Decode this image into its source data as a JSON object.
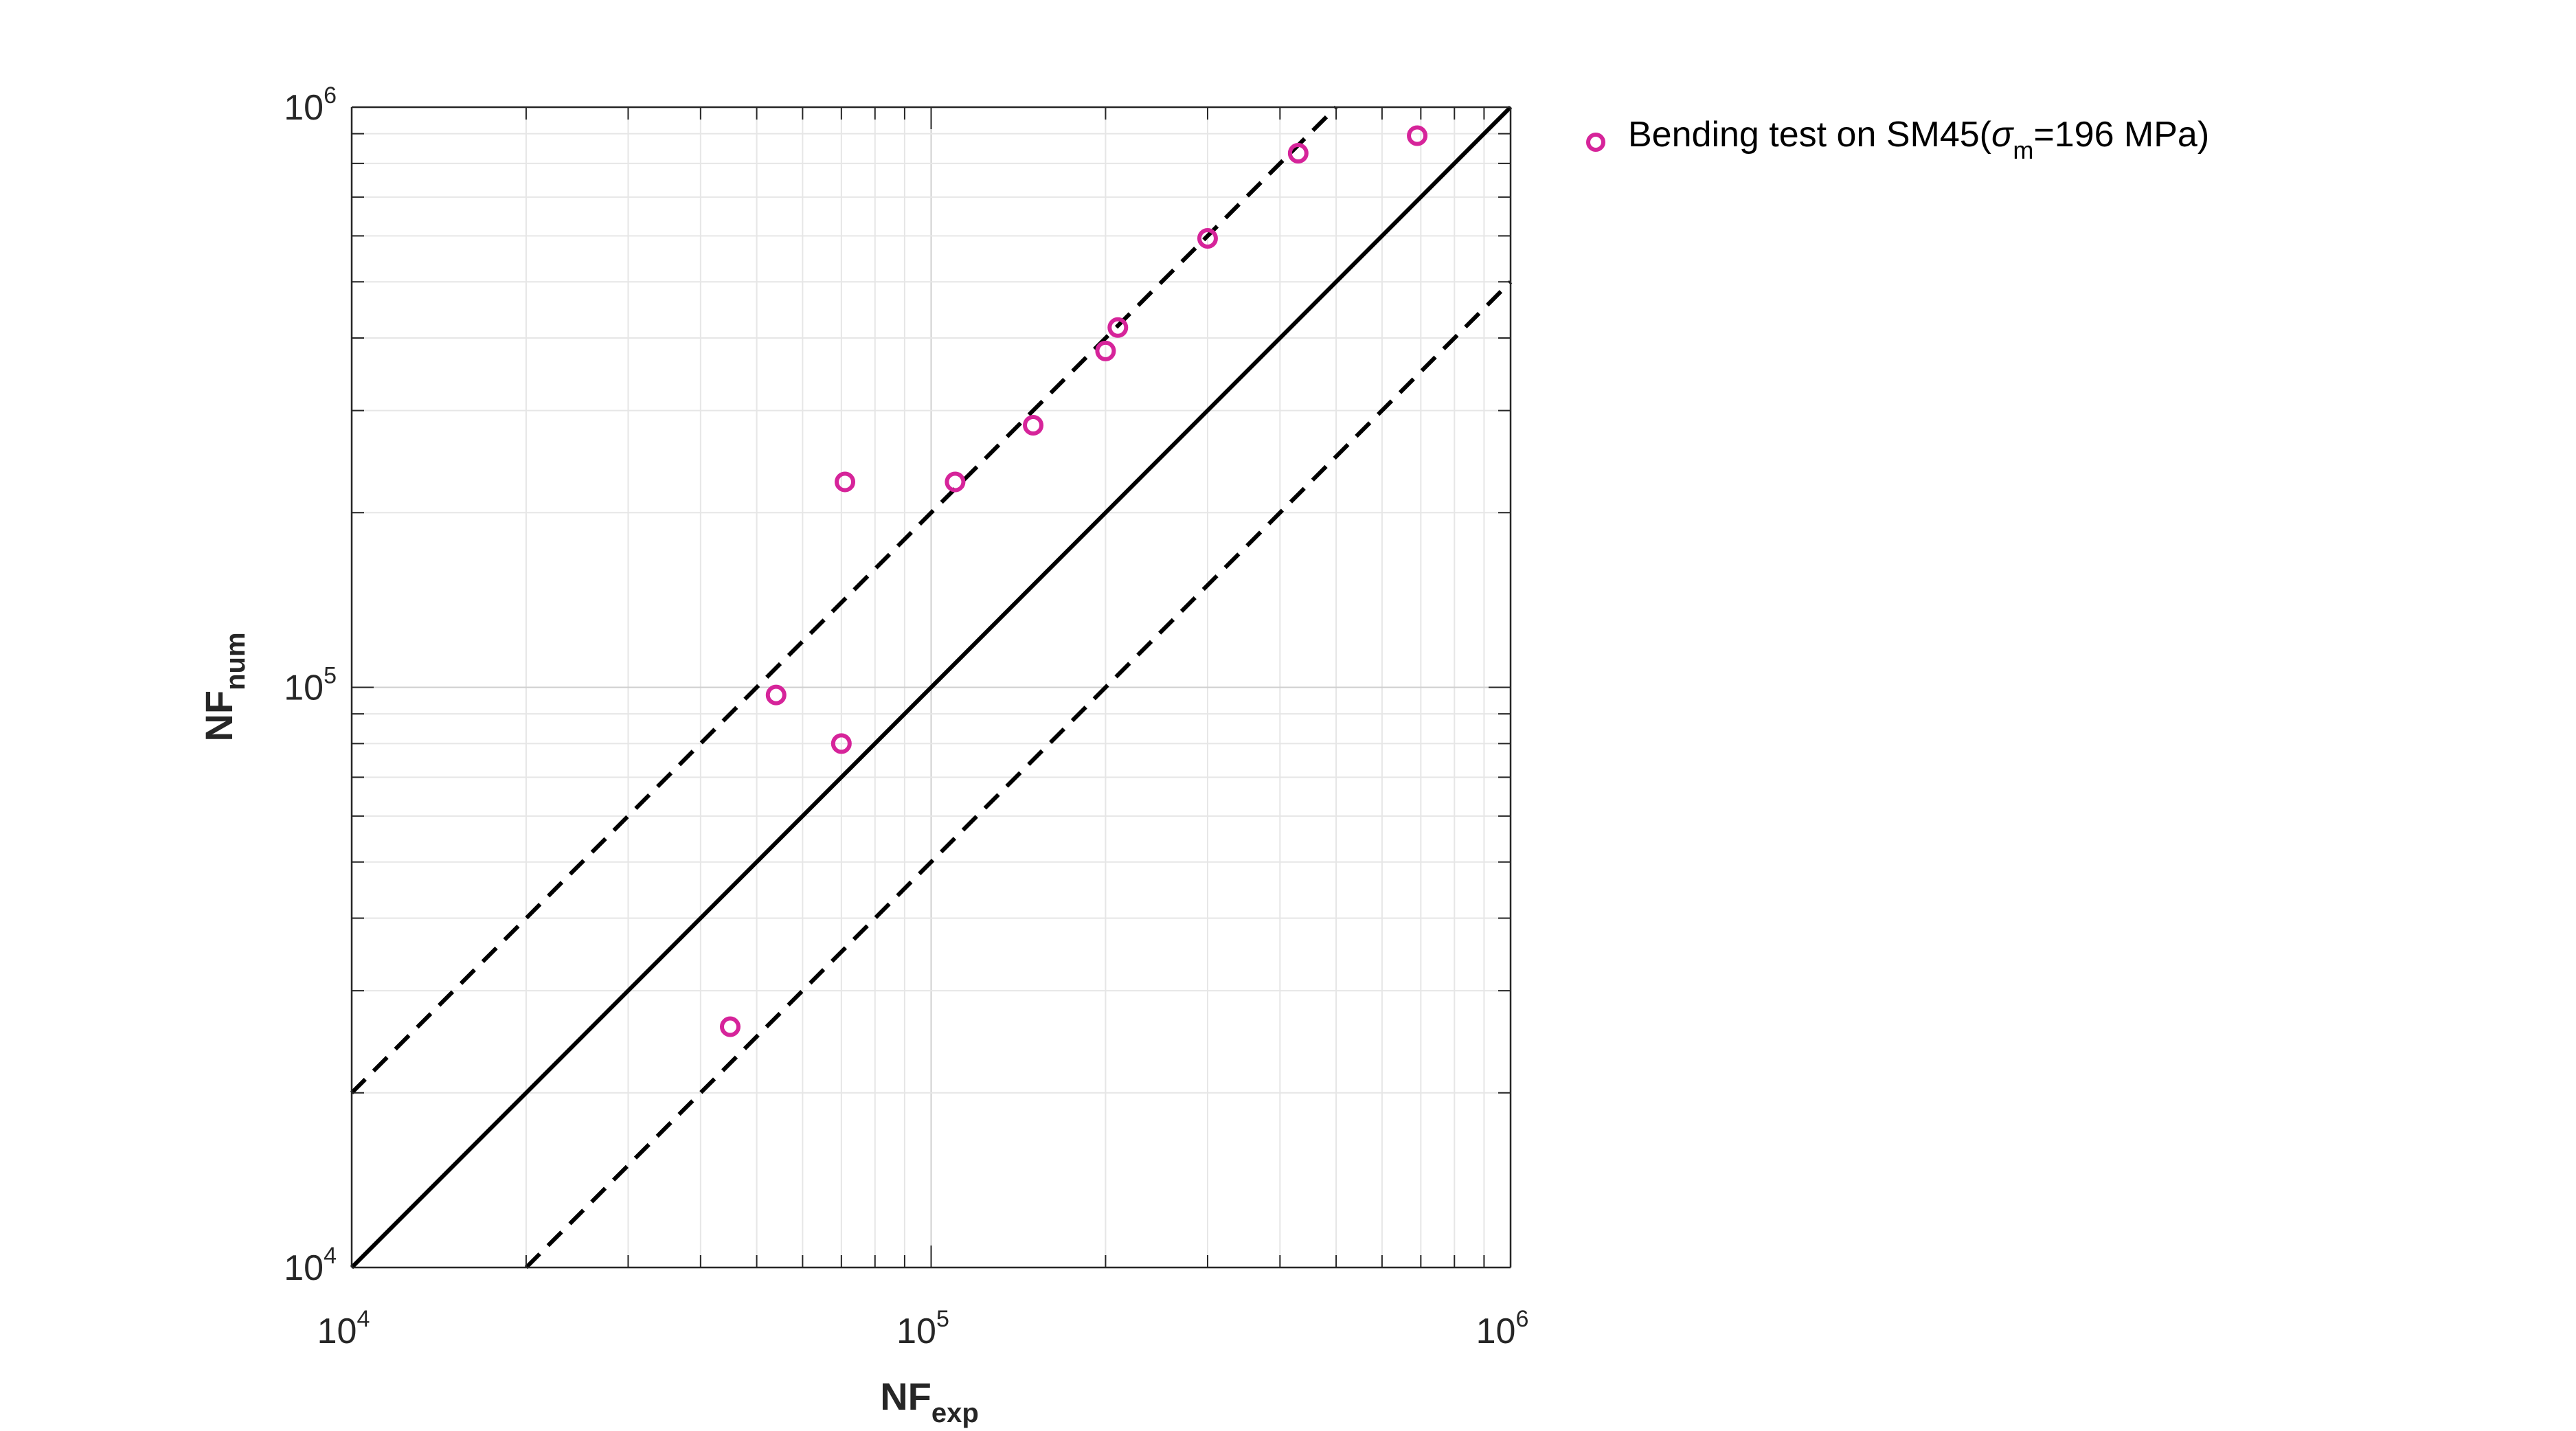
{
  "chart_data": {
    "type": "scatter",
    "xscale": "log",
    "yscale": "log",
    "xlim": [
      10000,
      1000000
    ],
    "ylim": [
      10000,
      1000000
    ],
    "grid": true,
    "xlabel": {
      "main": "NF",
      "sub": "exp"
    },
    "ylabel": {
      "main": "NF",
      "sub": "num"
    },
    "xticks": [
      {
        "base": "10",
        "exp": "4",
        "value": 10000
      },
      {
        "base": "10",
        "exp": "5",
        "value": 100000
      },
      {
        "base": "10",
        "exp": "6",
        "value": 1000000
      }
    ],
    "yticks": [
      {
        "base": "10",
        "exp": "4",
        "value": 10000
      },
      {
        "base": "10",
        "exp": "5",
        "value": 100000
      },
      {
        "base": "10",
        "exp": "6",
        "value": 1000000
      }
    ],
    "legend": {
      "placement": "outside-top-right",
      "text_before": "Bending test on SM45(",
      "symbol": "σ",
      "sub": "m",
      "text_after": "=196 MPa)"
    },
    "series": [
      {
        "color": "#d6249a",
        "marker": "circle-open",
        "points": [
          {
            "x": 45000,
            "y": 26000
          },
          {
            "x": 54000,
            "y": 97000
          },
          {
            "x": 70000,
            "y": 80000
          },
          {
            "x": 71000,
            "y": 226000
          },
          {
            "x": 110000,
            "y": 226000
          },
          {
            "x": 150000,
            "y": 283000
          },
          {
            "x": 200000,
            "y": 380000
          },
          {
            "x": 210000,
            "y": 417000
          },
          {
            "x": 300000,
            "y": 594000
          },
          {
            "x": 430000,
            "y": 833000
          },
          {
            "x": 690000,
            "y": 893000
          }
        ]
      }
    ],
    "reference_lines": [
      {
        "style": "solid",
        "color": "#000000",
        "from": [
          10000,
          10000
        ],
        "to": [
          1000000,
          1000000
        ]
      },
      {
        "style": "dashed",
        "color": "#000000",
        "from": [
          10000,
          20000
        ],
        "to": [
          500000,
          1000000
        ]
      },
      {
        "style": "dashed",
        "color": "#000000",
        "from": [
          20000,
          10000
        ],
        "to": [
          1000000,
          500000
        ]
      }
    ]
  }
}
